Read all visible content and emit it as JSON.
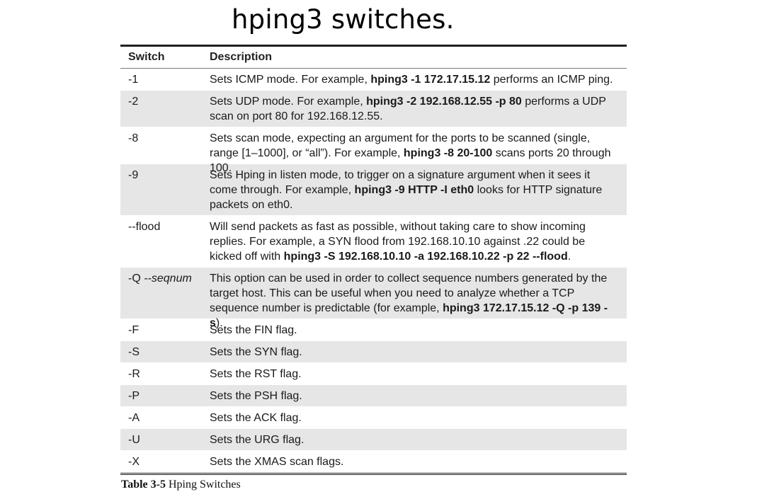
{
  "heading": "hping3 switches.",
  "table": {
    "header": {
      "switch": "Switch",
      "description": "Description"
    },
    "rows": [
      {
        "switch": "-1",
        "desc": [
          {
            "t": "Sets ICMP mode. For example, "
          },
          {
            "t": "hping3 -1 172.17.15.12",
            "b": true
          },
          {
            "t": " performs an ICMP ping."
          }
        ]
      },
      {
        "switch": "-2",
        "desc": [
          {
            "t": "Sets UDP mode. For example, "
          },
          {
            "t": "hping3 -2 192.168.12.55 -p 80",
            "b": true
          },
          {
            "t": " performs a UDP scan on port 80 for 192.168.12.55."
          }
        ]
      },
      {
        "switch": "-8",
        "desc": [
          {
            "t": "Sets scan mode, expecting an argument for the ports to be scanned (single, range [1–1000], or “all”). For example, "
          },
          {
            "t": "hping3 -8 20-100",
            "b": true
          },
          {
            "t": " scans ports 20 through 100."
          }
        ]
      },
      {
        "switch": "-9",
        "desc": [
          {
            "t": "Sets Hping in listen mode, to trigger on a signature argument when it sees it come through. For example, "
          },
          {
            "t": "hping3 -9 HTTP -I eth0",
            "b": true
          },
          {
            "t": " looks for HTTP signature packets on eth0."
          }
        ]
      },
      {
        "switch": "--flood",
        "desc": [
          {
            "t": "Will send packets as fast as possible, without taking care to show incoming replies. For example, a SYN flood from 192.168.10.10 against .22 could be kicked off with "
          },
          {
            "t": "hping3 -S 192.168.10.10 -a 192.168.10.22 -p 22 --flood",
            "b": true
          },
          {
            "t": "."
          }
        ]
      },
      {
        "switch": "-Q",
        "switch_italic": " --seqnum",
        "desc": [
          {
            "t": "This option can be used in order to collect sequence numbers generated by the target host. This can be useful when you need to analyze whether a TCP sequence number is predictable (for example, "
          },
          {
            "t": "hping3 172.17.15.12 -Q -p 139 -s",
            "b": true
          },
          {
            "t": ")."
          }
        ]
      },
      {
        "switch": "-F",
        "desc": [
          {
            "t": "Sets the FIN flag."
          }
        ]
      },
      {
        "switch": "-S",
        "desc": [
          {
            "t": "Sets the SYN flag."
          }
        ]
      },
      {
        "switch": "-R",
        "desc": [
          {
            "t": "Sets the RST flag."
          }
        ]
      },
      {
        "switch": "-P",
        "desc": [
          {
            "t": "Sets the PSH flag."
          }
        ]
      },
      {
        "switch": "-A",
        "desc": [
          {
            "t": "Sets the ACK flag."
          }
        ]
      },
      {
        "switch": "-U",
        "desc": [
          {
            "t": "Sets the URG flag."
          }
        ]
      },
      {
        "switch": "-X",
        "desc": [
          {
            "t": "Sets the XMAS scan flags."
          }
        ]
      }
    ]
  },
  "caption": {
    "label": "Table 3-5",
    "text": " Hping Switches"
  }
}
